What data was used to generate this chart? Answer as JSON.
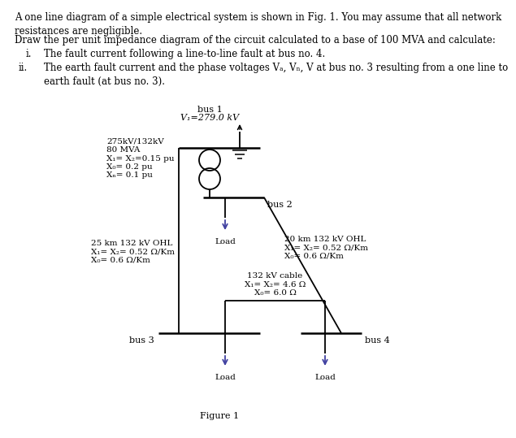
{
  "bg_color": "#ffffff",
  "line_color": "#000000",
  "text_color": "#000000",
  "arrow_color": "#4040a0",
  "bus1_label": "bus 1",
  "bus1_voltage": "V₁=279.0 kV",
  "bus2_label": "bus 2",
  "bus3_label": "bus 3",
  "bus4_label": "bus 4",
  "transformer_label": "275kV/132kV\n80 MVA\nX₁= X₂=0.15 pu\nX₀= 0.2 pu\nXₙ= 0.1 pu",
  "ohl25_label": "25 km 132 kV OHL\nX₁= X₂= 0.52 Ω/Km\nX₀= 0.6 Ω/Km",
  "ohl20_label": "20 km 132 kV OHL\nX₁= X₂= 0.52 Ω/Km\nX₀= 0.6 Ω/Km",
  "cable_label": "132 kV cable\nX₁= X₂= 4.6 Ω\nX₀= 6.0 Ω",
  "load_label": "Load",
  "figure_label": "Figure 1",
  "header1": "A one line diagram of a simple electrical system is shown in Fig. 1. You may assume that all network\nresistances are negligible.",
  "header2": "Draw the per unit impedance diagram of the circuit calculated to a base of 100 MVA and calculate:",
  "item_i_num": "i.",
  "item_i_text": "The fault current following a line-to-line fault at bus no. 4.",
  "item_ii_num": "ii.",
  "item_ii_text": "The earth fault current and the phase voltages Vₐ, Vₙ, V⁣ at bus no. 3 resulting from a one line to\nearth fault (at bus no. 3).",
  "fontsize_body": 8.5,
  "fontsize_small": 8.0,
  "fontsize_diagram": 7.5
}
